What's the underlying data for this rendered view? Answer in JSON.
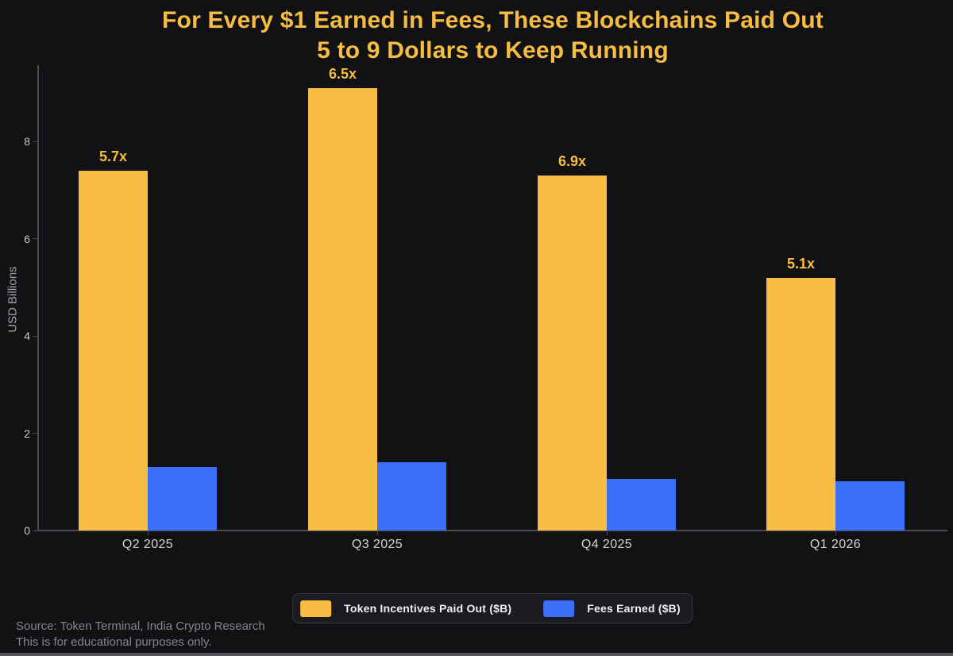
{
  "title": {
    "line1": "For Every $1 Earned in Fees, These Blockchains Paid Out",
    "line2": "5 to 9 Dollars to Keep Running"
  },
  "chart_data": {
    "type": "bar",
    "categories": [
      "Q2 2025",
      "Q3 2025",
      "Q4 2025",
      "Q1 2026"
    ],
    "series": [
      {
        "name": "Token Incentives Paid Out ($B)",
        "color": "#F8BE44",
        "values": [
          7.4,
          9.1,
          7.3,
          5.2
        ]
      },
      {
        "name": "Fees Earned ($B)",
        "color": "#3B6FF8",
        "values": [
          1.3,
          1.4,
          1.06,
          1.02
        ]
      }
    ],
    "bar_labels": [
      "5.7x",
      "6.5x",
      "6.9x",
      "5.1x"
    ],
    "title": "For Every $1 Earned in Fees, These Blockchains Paid Out 5 to 9 Dollars to Keep Running",
    "xlabel": "",
    "ylabel": "USD Billions",
    "yticks": [
      0,
      2,
      4,
      6,
      8
    ],
    "ylim": [
      0,
      9.6
    ],
    "grid": false,
    "legend_position": "bottom-center"
  },
  "legend": {
    "items": [
      {
        "label": "Token Incentives Paid Out ($B)",
        "color": "#F8BE44"
      },
      {
        "label": "Fees Earned ($B)",
        "color": "#3B6FF8"
      }
    ]
  },
  "footer": {
    "source_line1": "Source: Token Terminal, India Crypto Research",
    "source_line2": "This is for educational purposes only."
  },
  "colors": {
    "background": "#121214",
    "title": "#F7BD42",
    "axis": "#4A4A50",
    "tick_label": "#C9C9CE",
    "x_tick_label": "#D4D4D8",
    "axis_label": "#A3A3AB",
    "source_text": "#84848E",
    "legend_bg": "#1C1C20",
    "legend_border": "#36363C",
    "window_edge": "#55555B"
  }
}
